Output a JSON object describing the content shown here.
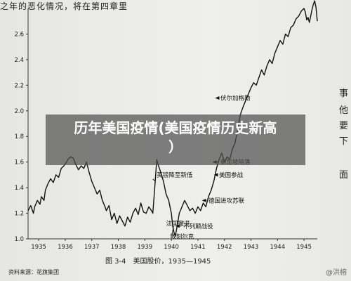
{
  "header_text": "之年的恶化情况，将在第四章里",
  "margin_text": [
    "事",
    "他",
    "要",
    "下",
    "面"
  ],
  "caption": "图 3-4　美国股价，1935—1945",
  "source": "资料来源：花旗集团",
  "watermark": "@洪榕",
  "banner": {
    "line1": "历年美国疫情(美国疫情历史新高",
    "line2": "）"
  },
  "chart_data": {
    "type": "line",
    "title": "",
    "xlabel": "",
    "ylabel": "",
    "x_ticks": [
      "1935",
      "1936",
      "1937",
      "1938",
      "1939",
      "1940",
      "1941",
      "1942",
      "1943",
      "1944",
      "1945"
    ],
    "y_ticks": [
      "1.0",
      "1.2",
      "1.4",
      "1.6",
      "1.8",
      "2.0",
      "2.2",
      "2.4",
      "2.6"
    ],
    "xlim": [
      1934.6,
      1945.5
    ],
    "ylim": [
      1.0,
      2.8
    ],
    "series": [
      {
        "x": [
          1934.6,
          1934.7,
          1934.8,
          1934.85,
          1934.95,
          1935.05,
          1935.1,
          1935.2,
          1935.25,
          1935.35,
          1935.45,
          1935.55,
          1935.65,
          1935.75,
          1935.85,
          1935.95,
          1936.05,
          1936.1,
          1936.2,
          1936.3,
          1936.4,
          1936.5,
          1936.6,
          1936.7,
          1936.8,
          1936.9,
          1937.0,
          1937.1,
          1937.2,
          1937.3,
          1937.4,
          1937.5,
          1937.55,
          1937.65,
          1937.75,
          1937.85,
          1937.95,
          1938.05,
          1938.15,
          1938.25,
          1938.35,
          1938.45,
          1938.55,
          1938.65,
          1938.75,
          1938.85,
          1938.95,
          1939.05,
          1939.15,
          1939.25,
          1939.3,
          1939.38,
          1939.45,
          1939.5,
          1939.6,
          1939.7,
          1939.8,
          1939.9,
          1940.0,
          1940.05,
          1940.1,
          1940.15,
          1940.2,
          1940.3,
          1940.4,
          1940.5,
          1940.6,
          1940.7,
          1940.8,
          1940.9,
          1941.0,
          1941.1,
          1941.2,
          1941.3,
          1941.4,
          1941.5,
          1941.6,
          1941.7,
          1941.8,
          1941.9,
          1942.0,
          1942.1,
          1942.2,
          1942.3,
          1942.4,
          1942.5,
          1942.6,
          1942.7,
          1942.8,
          1942.9,
          1943.0,
          1943.1,
          1943.2,
          1943.3,
          1943.4,
          1943.5,
          1943.6,
          1943.7,
          1943.8,
          1943.9,
          1944.0,
          1944.1,
          1944.2,
          1944.3,
          1944.4,
          1944.5,
          1944.6,
          1944.7,
          1944.8,
          1944.9,
          1945.0,
          1945.05,
          1945.1,
          1945.15,
          1945.2,
          1945.25,
          1945.3,
          1945.35,
          1945.4,
          1945.45,
          1945.5
        ],
        "y": [
          1.22,
          1.26,
          1.2,
          1.25,
          1.3,
          1.27,
          1.33,
          1.3,
          1.38,
          1.43,
          1.47,
          1.44,
          1.5,
          1.48,
          1.55,
          1.57,
          1.6,
          1.62,
          1.64,
          1.63,
          1.58,
          1.54,
          1.57,
          1.55,
          1.6,
          1.52,
          1.45,
          1.4,
          1.35,
          1.38,
          1.3,
          1.25,
          1.22,
          1.26,
          1.15,
          1.2,
          1.12,
          1.18,
          1.14,
          1.1,
          1.17,
          1.13,
          1.2,
          1.24,
          1.19,
          1.28,
          1.21,
          1.2,
          1.25,
          1.22,
          1.2,
          1.42,
          1.62,
          1.58,
          1.52,
          1.45,
          1.35,
          1.3,
          1.2,
          1.1,
          1.05,
          1.02,
          1.08,
          1.2,
          1.25,
          1.3,
          1.26,
          1.22,
          1.24,
          1.2,
          1.25,
          1.22,
          1.28,
          1.25,
          1.33,
          1.38,
          1.45,
          1.55,
          1.62,
          1.67,
          1.6,
          1.64,
          1.62,
          1.7,
          1.75,
          1.85,
          1.97,
          2.03,
          2.08,
          2.13,
          2.18,
          2.22,
          2.2,
          2.26,
          2.32,
          2.28,
          2.35,
          2.4,
          2.37,
          2.45,
          2.5,
          2.55,
          2.52,
          2.6,
          2.58,
          2.65,
          2.67,
          2.72,
          2.74,
          2.78,
          2.8,
          2.77,
          2.71,
          2.73,
          2.69,
          2.74,
          2.79,
          2.83,
          2.86,
          2.81,
          2.7
        ]
      }
    ],
    "annotations": [
      {
        "text": "伏尔加格勒",
        "x": 1941.85,
        "y": 2.1
      },
      {
        "text": "新加坡陷落",
        "x": 1941.85,
        "y": 1.6
      },
      {
        "text": "美国参战",
        "x": 1941.8,
        "y": 1.5
      },
      {
        "text": "德国进攻苏联",
        "x": 1941.4,
        "y": 1.3
      },
      {
        "text": "不列颠战役",
        "x": 1940.45,
        "y": 1.1
      },
      {
        "text": "英镑降至新低",
        "x": 1939.45,
        "y": 1.5
      },
      {
        "text": "法国撤退",
        "x": 1939.8,
        "y": 1.12
      },
      {
        "text": "敦刻尔克",
        "x": 1939.95,
        "y": 1.02
      }
    ]
  }
}
